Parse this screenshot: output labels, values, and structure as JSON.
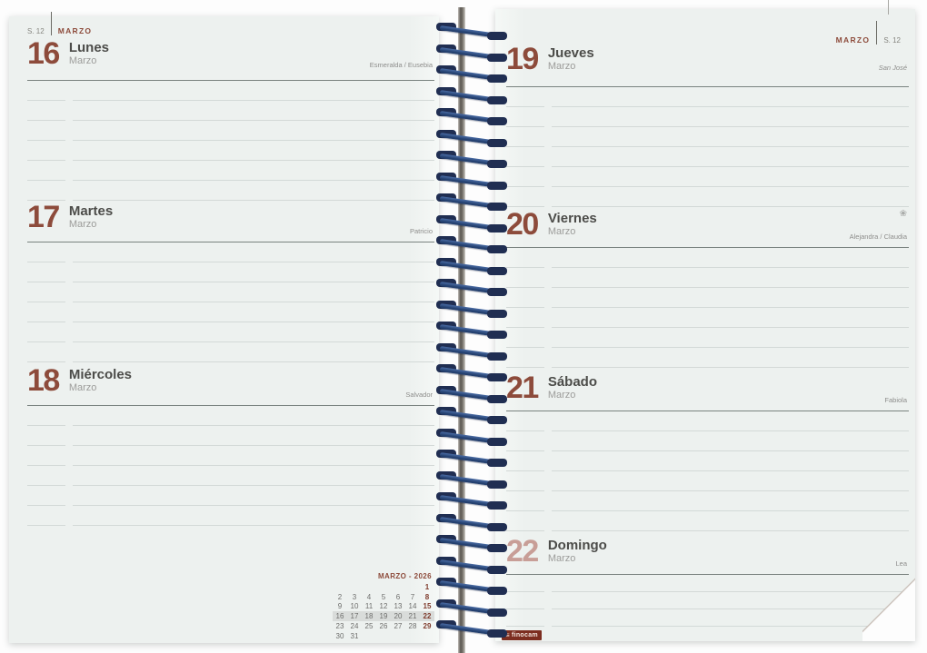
{
  "page_left": {
    "week_label": "S. 12",
    "month_label": "MARZO",
    "days": [
      {
        "number": "16",
        "name": "Lunes",
        "month": "Marzo",
        "saints": "Esmeralda / Eusebia",
        "lines": 6
      },
      {
        "number": "17",
        "name": "Martes",
        "month": "Marzo",
        "saints": "Patricio",
        "lines": 6
      },
      {
        "number": "18",
        "name": "Miércoles",
        "month": "Marzo",
        "saints": "Salvador",
        "lines": 6
      }
    ],
    "mini_calendar": {
      "title": "MARZO - 2026",
      "weeks": [
        [
          "",
          "",
          "",
          "",
          "",
          "",
          "1"
        ],
        [
          "2",
          "3",
          "4",
          "5",
          "6",
          "7",
          "8"
        ],
        [
          "9",
          "10",
          "11",
          "12",
          "13",
          "14",
          "15"
        ],
        [
          "16",
          "17",
          "18",
          "19",
          "20",
          "21",
          "22"
        ],
        [
          "23",
          "24",
          "25",
          "26",
          "27",
          "28",
          "29"
        ],
        [
          "30",
          "31",
          "",
          "",
          "",
          "",
          ""
        ]
      ],
      "highlight_week_index": 3,
      "sunday_column_index": 6
    }
  },
  "page_right": {
    "month_label": "MARZO",
    "week_label": "S. 12",
    "days": [
      {
        "number": "19",
        "name": "Jueves",
        "month": "Marzo",
        "saints": "San José",
        "italic": true,
        "lines": 6
      },
      {
        "number": "20",
        "name": "Viernes",
        "month": "Marzo",
        "saints": "Alejandra / Claudia",
        "icon": "flower-icon",
        "icon_glyph": "❀",
        "lines": 6
      },
      {
        "number": "21",
        "name": "Sábado",
        "month": "Marzo",
        "saints": "Fabiola",
        "lines": 6
      },
      {
        "number": "22",
        "name": "Domingo",
        "month": "Marzo",
        "saints": "Lea",
        "sunday": true,
        "lines": 3
      }
    ],
    "brand": "finocam"
  },
  "colors": {
    "accent_brown": "#8d4b3b",
    "sunday_rose": "#c89e97",
    "day_name_gray": "#4c4c49",
    "ruled_line": "#d3d9d7",
    "page_bg": "#edf1ef",
    "spiral_blue": "#24406f",
    "logo_red": "#7c2e20",
    "calendar_highlight": "#d9dcda"
  }
}
